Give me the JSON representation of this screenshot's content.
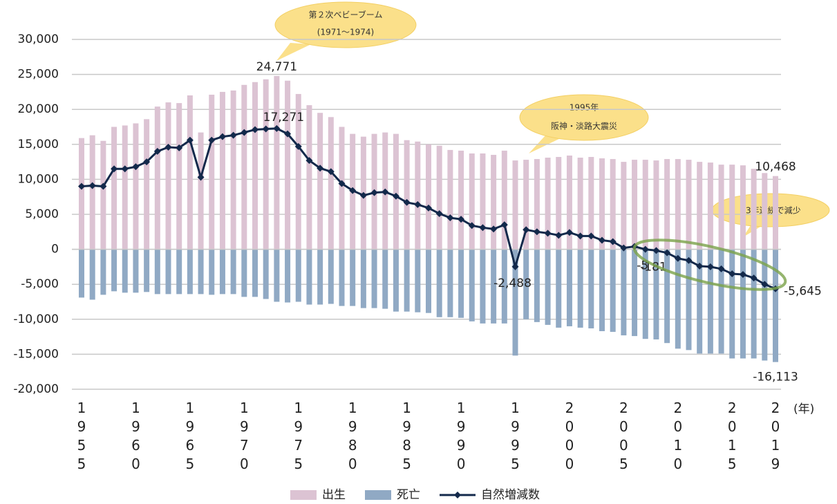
{
  "chart_data": {
    "type": "bar_line",
    "categories": [
      "1955",
      null,
      null,
      null,
      null,
      "1960",
      null,
      null,
      null,
      null,
      "1965",
      null,
      null,
      null,
      null,
      "1970",
      null,
      null,
      null,
      null,
      "1975",
      null,
      null,
      null,
      null,
      "1980",
      null,
      null,
      null,
      null,
      "1985",
      null,
      null,
      null,
      null,
      "1990",
      null,
      null,
      null,
      null,
      "1995",
      null,
      null,
      null,
      null,
      "2000",
      null,
      null,
      null,
      null,
      "2005",
      null,
      null,
      null,
      null,
      "2010",
      null,
      null,
      null,
      null,
      "2015",
      null,
      null,
      null,
      "2019"
    ],
    "x_label": "(年)",
    "series": [
      {
        "name": "出生",
        "type": "bar",
        "color": "#dcc3d3",
        "values": [
          15900,
          16300,
          15500,
          17500,
          17700,
          18000,
          18600,
          20400,
          21000,
          20900,
          22000,
          16700,
          22100,
          22500,
          22700,
          23500,
          23900,
          24300,
          24771,
          24100,
          22200,
          20600,
          19500,
          18900,
          17500,
          16500,
          16100,
          16500,
          16700,
          16500,
          15600,
          15400,
          15000,
          14800,
          14200,
          14100,
          13700,
          13700,
          13500,
          14100,
          12700,
          12800,
          12900,
          13100,
          13200,
          13400,
          13100,
          13200,
          13000,
          12900,
          12500,
          12800,
          12800,
          12700,
          12900,
          12900,
          12800,
          12500,
          12400,
          12100,
          12100,
          12000,
          11500,
          10900,
          10468
        ],
        "value_labels": [
          null,
          null,
          null,
          null,
          null,
          null,
          null,
          null,
          null,
          null,
          null,
          null,
          null,
          null,
          null,
          null,
          null,
          null,
          "24,771",
          null,
          null,
          null,
          null,
          null,
          null,
          null,
          null,
          null,
          null,
          null,
          null,
          null,
          null,
          null,
          null,
          null,
          null,
          null,
          null,
          null,
          null,
          null,
          null,
          null,
          null,
          null,
          null,
          null,
          null,
          null,
          null,
          null,
          null,
          null,
          null,
          null,
          null,
          null,
          null,
          null,
          null,
          null,
          null,
          null,
          "10,468"
        ]
      },
      {
        "name": "死亡",
        "type": "bar",
        "color": "#90a9c4",
        "values": [
          -6900,
          -7200,
          -6500,
          -6000,
          -6200,
          -6200,
          -6100,
          -6400,
          -6400,
          -6400,
          -6400,
          -6400,
          -6500,
          -6400,
          -6400,
          -6800,
          -6800,
          -7100,
          -7500,
          -7600,
          -7500,
          -7900,
          -7900,
          -7800,
          -8100,
          -8100,
          -8400,
          -8400,
          -8500,
          -8900,
          -8900,
          -9000,
          -9100,
          -9700,
          -9700,
          -9800,
          -10300,
          -10600,
          -10600,
          -10600,
          -15188,
          -10000,
          -10400,
          -10800,
          -11200,
          -11000,
          -11200,
          -11300,
          -11700,
          -11800,
          -12300,
          -12400,
          -12805,
          -12881,
          -13400,
          -14200,
          -14400,
          -14900,
          -14900,
          -14900,
          -15600,
          -15600,
          -15600,
          -15900,
          -16113
        ],
        "value_labels": [
          null,
          null,
          null,
          null,
          null,
          null,
          null,
          null,
          null,
          null,
          null,
          null,
          null,
          null,
          null,
          null,
          null,
          null,
          null,
          null,
          null,
          null,
          null,
          null,
          null,
          null,
          null,
          null,
          null,
          null,
          null,
          null,
          null,
          null,
          null,
          null,
          null,
          null,
          null,
          null,
          null,
          null,
          null,
          null,
          null,
          null,
          null,
          null,
          null,
          null,
          null,
          null,
          null,
          null,
          null,
          null,
          null,
          null,
          null,
          null,
          null,
          null,
          null,
          null,
          "-16,113"
        ]
      },
      {
        "name": "自然増減数",
        "type": "line",
        "color": "#13294b",
        "values": [
          9000,
          9100,
          9000,
          11500,
          11500,
          11800,
          12500,
          14000,
          14600,
          14500,
          15600,
          10300,
          15600,
          16100,
          16300,
          16700,
          17100,
          17200,
          17271,
          16500,
          14700,
          12700,
          11600,
          11100,
          9400,
          8400,
          7700,
          8100,
          8200,
          7600,
          6700,
          6400,
          5900,
          5100,
          4500,
          4300,
          3400,
          3100,
          2900,
          3500,
          -2488,
          2800,
          2500,
          2300,
          2000,
          2400,
          1900,
          1900,
          1300,
          1100,
          200,
          400,
          -5,
          -181,
          -500,
          -1300,
          -1600,
          -2400,
          -2500,
          -2800,
          -3500,
          -3600,
          -4100,
          -5000,
          -5645
        ],
        "value_labels": [
          null,
          null,
          null,
          null,
          null,
          null,
          null,
          null,
          null,
          null,
          null,
          null,
          null,
          null,
          null,
          null,
          null,
          null,
          "17,271",
          null,
          null,
          null,
          null,
          null,
          null,
          null,
          null,
          null,
          null,
          null,
          null,
          null,
          null,
          null,
          null,
          null,
          null,
          null,
          null,
          null,
          "-2,488",
          null,
          null,
          null,
          null,
          null,
          null,
          null,
          null,
          null,
          null,
          null,
          "-5",
          "-181",
          null,
          null,
          null,
          null,
          null,
          null,
          null,
          null,
          null,
          null,
          "-5,645"
        ]
      }
    ],
    "ylim": [
      -20000,
      30000
    ],
    "yticks": [
      {
        "value": -20000,
        "label": "-20,000"
      },
      {
        "value": -15000,
        "label": "-15,000"
      },
      {
        "value": -10000,
        "label": "-10,000"
      },
      {
        "value": -5000,
        "label": "-5,000"
      },
      0,
      {
        "value": 5000,
        "label": "5,000"
      },
      {
        "value": 10000,
        "label": "10,000"
      },
      {
        "value": 15000,
        "label": "15,000"
      },
      {
        "value": 20000,
        "label": "20,000"
      },
      {
        "value": 25000,
        "label": "25,000"
      },
      {
        "value": 30000,
        "label": "30,000"
      }
    ],
    "grid": true,
    "legend": "bottom",
    "annotations": [
      [
        "第２次ベビーブーム",
        "(1971～1974)"
      ],
      [
        "1995年",
        "阪神・淡路大震災"
      ],
      [
        "13年連続で減少"
      ]
    ]
  }
}
